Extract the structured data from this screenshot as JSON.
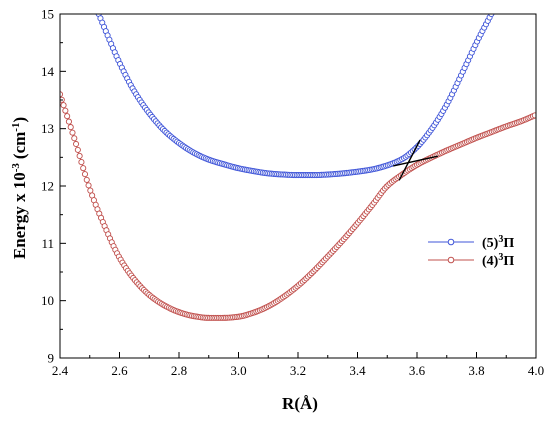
{
  "chart_data": {
    "type": "scatter",
    "xlabel": "R(Å)",
    "ylabel": "Energy x 10",
    "ylabel_exponent": "-3",
    "ylabel_unit_open": "(cm",
    "ylabel_unit_exponent": "-1",
    "ylabel_unit_close": ")",
    "xlim": [
      2.4,
      4.0
    ],
    "ylim": [
      9,
      15
    ],
    "x_ticks": [
      2.4,
      2.6,
      2.8,
      3.0,
      3.2,
      3.4,
      3.6,
      3.8,
      4.0
    ],
    "x_tick_labels": [
      "2.4",
      "2.6",
      "2.8",
      "3.0",
      "3.2",
      "3.4",
      "3.6",
      "3.8",
      "4.0"
    ],
    "y_ticks": [
      9,
      10,
      11,
      12,
      13,
      14,
      15
    ],
    "y_tick_labels": [
      "9",
      "10",
      "11",
      "12",
      "13",
      "14",
      "15"
    ],
    "grid": false,
    "legend_position": "right-middle",
    "series": [
      {
        "name": "(5)³Π",
        "label_prefix": "(5)",
        "label_sup": "3",
        "label_symbol": "Π",
        "color": "#3f55d8",
        "marker": "open-circle",
        "x": [
          2.53,
          2.55,
          2.6,
          2.65,
          2.7,
          2.75,
          2.8,
          2.85,
          2.9,
          2.95,
          3.0,
          3.05,
          3.1,
          3.15,
          3.2,
          3.25,
          3.3,
          3.35,
          3.4,
          3.45,
          3.5,
          3.55,
          3.6,
          3.65,
          3.7,
          3.75,
          3.8,
          3.85
        ],
        "y": [
          15.0,
          14.75,
          14.15,
          13.65,
          13.27,
          12.97,
          12.75,
          12.58,
          12.46,
          12.38,
          12.31,
          12.26,
          12.22,
          12.2,
          12.19,
          12.19,
          12.2,
          12.22,
          12.25,
          12.29,
          12.36,
          12.47,
          12.68,
          13.0,
          13.42,
          13.95,
          14.5,
          15.0
        ]
      },
      {
        "name": "(4)³Π",
        "label_prefix": "(4)",
        "label_sup": "3",
        "label_symbol": "Π",
        "color": "#c0504d",
        "marker": "open-circle",
        "x": [
          2.4,
          2.45,
          2.5,
          2.55,
          2.6,
          2.65,
          2.7,
          2.75,
          2.8,
          2.85,
          2.9,
          2.95,
          3.0,
          3.05,
          3.1,
          3.15,
          3.2,
          3.25,
          3.3,
          3.35,
          3.4,
          3.45,
          3.5,
          3.55,
          3.6,
          3.65,
          3.7,
          3.75,
          3.8,
          3.85,
          3.9,
          3.95,
          4.0
        ],
        "y": [
          13.6,
          12.8,
          11.95,
          11.3,
          10.75,
          10.37,
          10.1,
          9.92,
          9.8,
          9.73,
          9.7,
          9.7,
          9.72,
          9.79,
          9.9,
          10.06,
          10.26,
          10.5,
          10.77,
          11.05,
          11.35,
          11.67,
          12.0,
          12.2,
          12.37,
          12.5,
          12.62,
          12.73,
          12.84,
          12.94,
          13.04,
          13.13,
          13.24
        ]
      }
    ],
    "annotation_lines": [
      {
        "x": [
          3.54,
          3.61
        ],
        "y": [
          12.1,
          12.8
        ]
      },
      {
        "x": [
          3.52,
          3.67
        ],
        "y": [
          12.35,
          12.52
        ]
      }
    ]
  }
}
